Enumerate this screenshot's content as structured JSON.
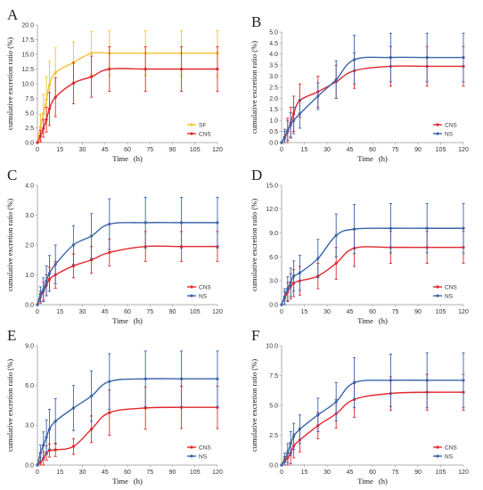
{
  "colors": {
    "SF": "#f2c230",
    "CNS": "#e0282d",
    "NS": "#3a64a8"
  },
  "chart_data": [
    {
      "panel": "A",
      "type": "line",
      "xlabel": "Time (h)",
      "ylabel": "cumulative excretion ratio (%)",
      "xlim": [
        0,
        120
      ],
      "xticks": [
        0,
        15,
        30,
        45,
        60,
        75,
        90,
        105,
        120
      ],
      "ylim": [
        0,
        20
      ],
      "yticks": [
        "0.0",
        "2.5",
        "5.0",
        "7.5",
        "10.0",
        "12.5",
        "15.0",
        "17.5",
        "20.0"
      ],
      "legend": "bottom-right",
      "series": [
        {
          "name": "SF",
          "x": [
            0,
            2,
            4,
            6,
            8,
            12,
            24,
            36,
            48,
            72,
            96,
            120
          ],
          "values": [
            0,
            2.6,
            4.9,
            7.3,
            9.8,
            11.9,
            13.6,
            15.2,
            15.2,
            15.2,
            15.2,
            15.2
          ],
          "errors": [
            0,
            2.2,
            3.3,
            3.9,
            4.0,
            4.2,
            3.5,
            3.7,
            3.8,
            3.8,
            3.8,
            3.8
          ]
        },
        {
          "name": "CNS",
          "x": [
            0,
            2,
            4,
            6,
            8,
            12,
            24,
            36,
            48,
            72,
            96,
            120
          ],
          "values": [
            0,
            1.1,
            2.4,
            3.9,
            5.7,
            7.7,
            10.1,
            11.2,
            12.5,
            12.5,
            12.5,
            12.5
          ],
          "errors": [
            0,
            1.0,
            1.5,
            2.1,
            2.8,
            3.3,
            3.5,
            3.5,
            3.8,
            3.8,
            3.8,
            3.8
          ]
        }
      ]
    },
    {
      "panel": "B",
      "type": "line",
      "xlabel": "Time (h)",
      "ylabel": "cumulative excretion ratio (%)",
      "xlim": [
        0,
        120
      ],
      "xticks": [
        0,
        15,
        30,
        45,
        60,
        75,
        90,
        105,
        120
      ],
      "ylim": [
        0,
        5
      ],
      "yticks": [
        "0.0",
        "0.5",
        "1.0",
        "1.5",
        "2.0",
        "2.5",
        "3.0",
        "3.5",
        "4.0",
        "4.5",
        "5.0"
      ],
      "legend": "bottom-right",
      "series": [
        {
          "name": "CNS",
          "x": [
            0,
            2,
            4,
            6,
            8,
            12,
            24,
            36,
            48,
            72,
            96,
            120
          ],
          "values": [
            0,
            0.2,
            0.5,
            0.9,
            1.3,
            1.9,
            2.3,
            2.75,
            3.25,
            3.45,
            3.45,
            3.45
          ],
          "errors": [
            0,
            0.3,
            0.6,
            0.7,
            0.8,
            0.75,
            0.7,
            0.75,
            0.8,
            0.9,
            0.9,
            0.9
          ]
        },
        {
          "name": "NS",
          "x": [
            0,
            2,
            4,
            6,
            8,
            12,
            24,
            36,
            48,
            72,
            96,
            120
          ],
          "values": [
            0,
            0.25,
            0.55,
            0.8,
            1.0,
            1.3,
            2.1,
            2.85,
            3.75,
            3.85,
            3.85,
            3.85
          ],
          "errors": [
            0,
            0.35,
            0.45,
            0.55,
            0.6,
            0.65,
            0.6,
            0.85,
            1.1,
            1.1,
            1.1,
            1.1
          ]
        }
      ]
    },
    {
      "panel": "C",
      "type": "line",
      "xlabel": "Time (h)",
      "ylabel": "cumulative excretion ratio (%)",
      "xlim": [
        0,
        120
      ],
      "xticks": [
        0,
        15,
        30,
        45,
        60,
        75,
        90,
        105,
        120
      ],
      "ylim": [
        0,
        4
      ],
      "yticks": [
        "0.0",
        "1.0",
        "2.0",
        "3.0",
        "4.0"
      ],
      "legend": "bottom-right",
      "series": [
        {
          "name": "CNS",
          "x": [
            0,
            2,
            4,
            6,
            8,
            12,
            24,
            36,
            48,
            72,
            96,
            120
          ],
          "values": [
            0,
            0.25,
            0.45,
            0.65,
            0.85,
            1.0,
            1.3,
            1.5,
            1.75,
            1.95,
            1.95,
            1.95
          ],
          "errors": [
            0,
            0.2,
            0.3,
            0.35,
            0.4,
            0.45,
            0.4,
            0.45,
            0.45,
            0.5,
            0.5,
            0.5
          ]
        },
        {
          "name": "NS",
          "x": [
            0,
            2,
            4,
            6,
            8,
            12,
            24,
            36,
            48,
            72,
            96,
            120
          ],
          "values": [
            0,
            0.35,
            0.5,
            0.8,
            1.05,
            1.35,
            2.0,
            2.3,
            2.7,
            2.75,
            2.75,
            2.75
          ],
          "errors": [
            0,
            0.25,
            0.4,
            0.5,
            0.6,
            0.65,
            0.65,
            0.75,
            0.85,
            0.85,
            0.85,
            0.85
          ]
        }
      ]
    },
    {
      "panel": "D",
      "type": "line",
      "xlabel": "Time (h)",
      "ylabel": "cumulative excretion ratio (%)",
      "xlim": [
        0,
        120
      ],
      "xticks": [
        0,
        15,
        30,
        45,
        60,
        75,
        90,
        105,
        120
      ],
      "ylim": [
        0,
        15
      ],
      "yticks": [
        "0.0",
        "3.0",
        "6.0",
        "9.0",
        "12.0",
        "15.0"
      ],
      "legend": "bottom-right",
      "series": [
        {
          "name": "CNS",
          "x": [
            0,
            2,
            4,
            6,
            8,
            12,
            24,
            36,
            48,
            72,
            96,
            120
          ],
          "values": [
            0,
            0.8,
            1.6,
            2.3,
            2.7,
            3.0,
            3.6,
            5.2,
            7.1,
            7.2,
            7.2,
            7.2
          ],
          "errors": [
            0,
            0.8,
            1.2,
            1.6,
            1.7,
            1.8,
            1.6,
            2.0,
            2.3,
            2.0,
            2.0,
            2.0
          ]
        },
        {
          "name": "NS",
          "x": [
            0,
            2,
            4,
            6,
            8,
            12,
            24,
            36,
            48,
            72,
            96,
            120
          ],
          "values": [
            0,
            1.0,
            2.0,
            2.8,
            3.6,
            4.0,
            5.8,
            8.7,
            9.5,
            9.6,
            9.6,
            9.6
          ],
          "errors": [
            0,
            1.0,
            1.5,
            1.8,
            1.9,
            2.2,
            2.4,
            2.7,
            3.1,
            3.1,
            3.1,
            3.1
          ]
        }
      ]
    },
    {
      "panel": "E",
      "type": "line",
      "xlabel": "Time (h)",
      "ylabel": "cumulative excretion ratio (%)",
      "xlim": [
        0,
        120
      ],
      "xticks": [
        0,
        15,
        30,
        45,
        60,
        75,
        90,
        105,
        120
      ],
      "ylim": [
        0,
        9
      ],
      "yticks": [
        "0.0",
        "3.0",
        "6.0",
        "9.0"
      ],
      "legend": "bottom-right",
      "series": [
        {
          "name": "CNS",
          "x": [
            0,
            2,
            4,
            6,
            8,
            12,
            24,
            36,
            48,
            72,
            96,
            120
          ],
          "values": [
            0,
            0.2,
            0.5,
            0.9,
            1.1,
            1.15,
            1.4,
            2.7,
            3.95,
            4.3,
            4.35,
            4.35
          ],
          "errors": [
            0,
            0.4,
            0.5,
            0.55,
            0.5,
            0.5,
            0.6,
            1.0,
            1.7,
            1.6,
            1.6,
            1.6
          ]
        },
        {
          "name": "NS",
          "x": [
            0,
            2,
            4,
            6,
            8,
            12,
            24,
            36,
            48,
            72,
            96,
            120
          ],
          "values": [
            0,
            0.9,
            1.5,
            2.1,
            2.7,
            3.3,
            4.3,
            5.2,
            6.3,
            6.5,
            6.5,
            6.5
          ],
          "errors": [
            0,
            0.6,
            1.0,
            1.3,
            1.5,
            1.7,
            1.7,
            1.9,
            2.1,
            2.1,
            2.1,
            2.1
          ]
        }
      ]
    },
    {
      "panel": "F",
      "type": "line",
      "xlabel": "Time (h)",
      "ylabel": "cumulative excretion ratio (%)",
      "xlim": [
        0,
        120
      ],
      "xticks": [
        0,
        15,
        30,
        45,
        60,
        75,
        90,
        105,
        120
      ],
      "ylim": [
        0,
        10
      ],
      "yticks": [
        "0.0",
        "2.5",
        "5.0",
        "7.5",
        "10.0"
      ],
      "legend": "bottom-right",
      "series": [
        {
          "name": "CNS",
          "x": [
            0,
            2,
            4,
            6,
            8,
            12,
            24,
            36,
            48,
            72,
            96,
            120
          ],
          "values": [
            0,
            0.3,
            0.6,
            1.0,
            1.6,
            2.1,
            3.3,
            4.3,
            5.5,
            6.0,
            6.1,
            6.1
          ],
          "errors": [
            0,
            0.4,
            0.6,
            0.9,
            1.0,
            1.0,
            1.1,
            1.2,
            1.5,
            1.4,
            1.5,
            1.5
          ]
        },
        {
          "name": "NS",
          "x": [
            0,
            2,
            4,
            6,
            8,
            12,
            24,
            36,
            48,
            72,
            96,
            120
          ],
          "values": [
            0,
            0.5,
            1.0,
            1.8,
            2.4,
            3.0,
            4.2,
            5.3,
            6.9,
            7.1,
            7.1,
            7.1
          ],
          "errors": [
            0,
            0.5,
            0.8,
            1.0,
            1.1,
            1.2,
            1.4,
            1.6,
            2.1,
            2.2,
            2.3,
            2.3
          ]
        }
      ]
    }
  ]
}
